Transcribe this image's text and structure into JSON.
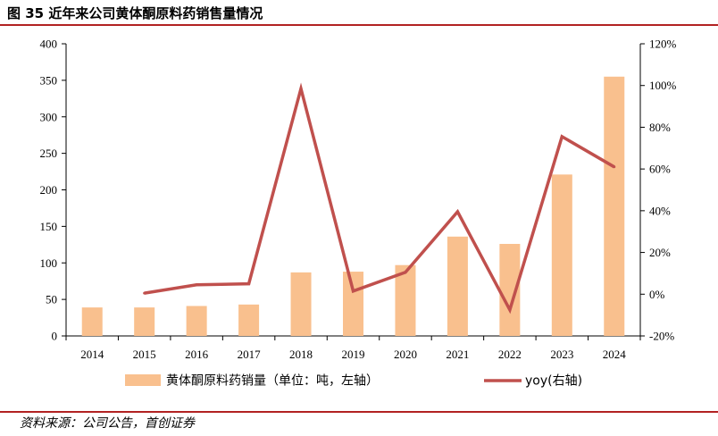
{
  "title": "图 35  近年来公司黄体酮原料药销售量情况",
  "source": "资料来源：公司公告，首创证券",
  "chart_data": {
    "type": "bar",
    "categories": [
      "2014",
      "2015",
      "2016",
      "2017",
      "2018",
      "2019",
      "2020",
      "2021",
      "2022",
      "2023",
      "2024"
    ],
    "series": [
      {
        "name": "黄体酮原料药销量（单位：吨，左轴）",
        "type": "bar",
        "axis": "left",
        "color": "#f9c08e",
        "values": [
          39,
          39,
          41,
          43,
          87,
          88,
          97,
          136,
          126,
          221,
          355
        ]
      },
      {
        "name": "yoy(右轴)",
        "type": "line",
        "axis": "right",
        "color": "#c0504d",
        "values": [
          null,
          0.5,
          4.5,
          5.0,
          98.5,
          1.5,
          10.5,
          39.5,
          -7.5,
          75.5,
          61.0
        ]
      }
    ],
    "ylim_left": [
      0,
      400
    ],
    "yticks_left": [
      "0",
      "50",
      "100",
      "150",
      "200",
      "250",
      "300",
      "350",
      "400"
    ],
    "ylim_right": [
      -20,
      120
    ],
    "yticks_right": [
      "-20%",
      "0%",
      "20%",
      "40%",
      "60%",
      "80%",
      "100%",
      "120%"
    ],
    "grid": false,
    "legend": "bottom"
  }
}
